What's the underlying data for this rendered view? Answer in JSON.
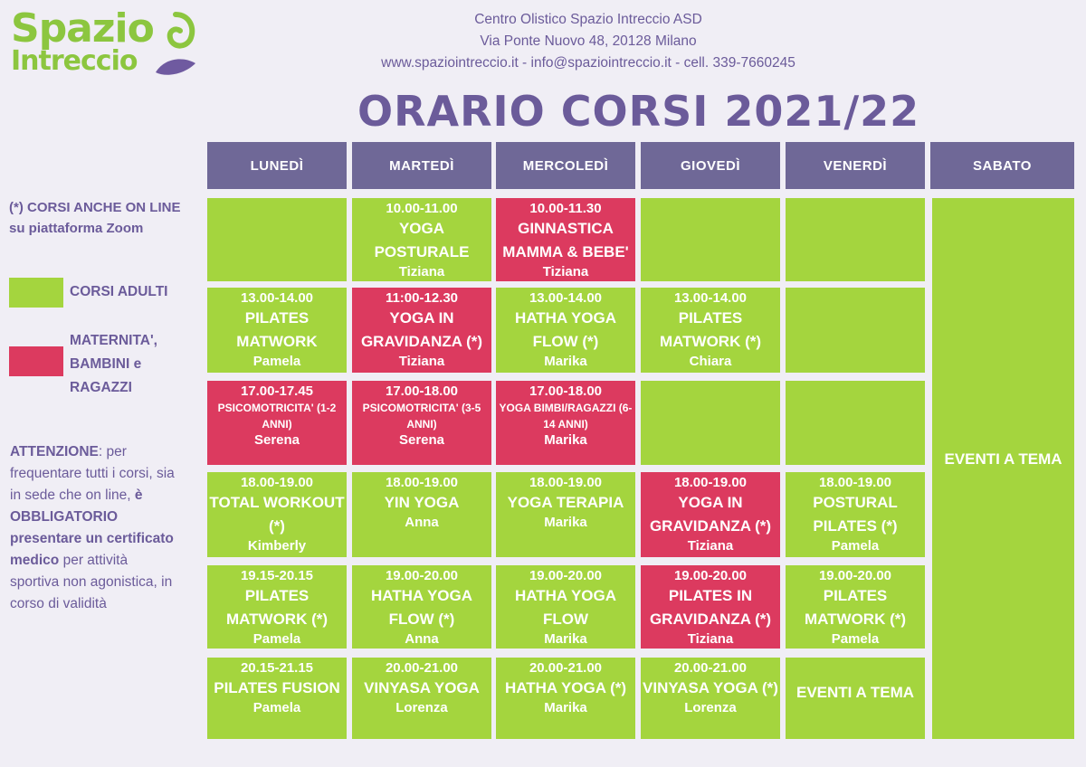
{
  "logo": {
    "line1": "Spazio",
    "line2": "Intreccio"
  },
  "header": {
    "line1": "Centro Olistico Spazio Intreccio ASD",
    "line2": "Via Ponte Nuovo 48, 20128 Milano",
    "line3": "www.spaziointreccio.it - info@spaziointreccio.it - cell. 339-7660245"
  },
  "title": "ORARIO CORSI 2021/22",
  "days": [
    "LUNEDÌ",
    "MARTEDÌ",
    "MERCOLEDÌ",
    "GIOVEDÌ",
    "VENERDÌ",
    "SABATO"
  ],
  "legend": {
    "note": "(*) CORSI ANCHE ON LINE su piattaforma Zoom",
    "adults": "CORSI ADULTI",
    "maternity": "MATERNITA', BAMBINI e RAGAZZI",
    "colors": {
      "adults": "#a4d53e",
      "maternity": "#dc3a5f",
      "header": "#6f6897",
      "text": "#6b5b9a"
    }
  },
  "attention": {
    "label": "ATTENZIONE",
    "text1": ": per frequentare tutti i corsi, sia in sede che on line, ",
    "bold1": "è OBBLIGATORIO presentare un certificato medico",
    "text2": " per attività sportiva non agonistica, in corso di validità"
  },
  "saturday": "EVENTI A TEMA",
  "schedule": [
    [
      {
        "color": "green",
        "time": "",
        "name": "",
        "person": ""
      },
      {
        "color": "green",
        "time": "10.00-11.00",
        "name": "YOGA POSTURALE",
        "person": "Tiziana"
      },
      {
        "color": "pink",
        "time": "10.00-11.30",
        "name": "GINNASTICA MAMMA & BEBE'",
        "person": "Tiziana"
      },
      {
        "color": "green",
        "time": "",
        "name": "",
        "person": ""
      },
      {
        "color": "green",
        "time": "",
        "name": "",
        "person": ""
      }
    ],
    [
      {
        "color": "green",
        "time": "13.00-14.00",
        "name": "PILATES MATWORK",
        "person": "Pamela"
      },
      {
        "color": "pink",
        "time": "11:00-12.30",
        "name": "YOGA IN GRAVIDANZA (*)",
        "person": "Tiziana"
      },
      {
        "color": "green",
        "time": "13.00-14.00",
        "name": "HATHA YOGA FLOW (*)",
        "person": "Marika"
      },
      {
        "color": "green",
        "time": "13.00-14.00",
        "name": "PILATES MATWORK (*)",
        "person": "Chiara"
      },
      {
        "color": "green",
        "time": "",
        "name": "",
        "person": ""
      }
    ],
    [
      {
        "color": "pink",
        "time": "17.00-17.45",
        "sub": "PSICOMOTRICITA' (1-2 ANNI)",
        "person": "Serena"
      },
      {
        "color": "pink",
        "time": "17.00-18.00",
        "sub": "PSICOMOTRICITA' (3-5 ANNI)",
        "person": "Serena"
      },
      {
        "color": "pink",
        "time": "17.00-18.00",
        "sub": "YOGA BIMBI/RAGAZZI (6-14 ANNI)",
        "person": "Marika"
      },
      {
        "color": "green",
        "time": "",
        "name": "",
        "person": ""
      },
      {
        "color": "green",
        "time": "",
        "name": "",
        "person": ""
      }
    ],
    [
      {
        "color": "green",
        "time": "18.00-19.00",
        "name": "TOTAL WORKOUT (*)",
        "person": "Kimberly"
      },
      {
        "color": "green",
        "time": "18.00-19.00",
        "name": "YIN YOGA",
        "person": "Anna"
      },
      {
        "color": "green",
        "time": "18.00-19.00",
        "name": "YOGA TERAPIA",
        "person": "Marika"
      },
      {
        "color": "pink",
        "time": "18.00-19.00",
        "name": "YOGA IN GRAVIDANZA (*)",
        "person": "Tiziana"
      },
      {
        "color": "green",
        "time": "18.00-19.00",
        "name": "POSTURAL PILATES (*)",
        "person": "Pamela"
      }
    ],
    [
      {
        "color": "green",
        "time": "19.15-20.15",
        "name": "PILATES MATWORK (*)",
        "person": "Pamela"
      },
      {
        "color": "green",
        "time": "19.00-20.00",
        "name": "HATHA YOGA FLOW (*)",
        "person": "Anna"
      },
      {
        "color": "green",
        "time": "19.00-20.00",
        "name": "HATHA YOGA FLOW",
        "person": "Marika"
      },
      {
        "color": "pink",
        "time": "19.00-20.00",
        "name": "PILATES IN GRAVIDANZA (*)",
        "person": "Tiziana"
      },
      {
        "color": "green",
        "time": "19.00-20.00",
        "name": "PILATES MATWORK (*)",
        "person": "Pamela"
      }
    ],
    [
      {
        "color": "green",
        "time": "20.15-21.15",
        "name": "PILATES FUSION",
        "person": "Pamela"
      },
      {
        "color": "green",
        "time": "20.00-21.00",
        "name": "VINYASA YOGA",
        "person": "Lorenza"
      },
      {
        "color": "green",
        "time": "20.00-21.00",
        "name": "HATHA YOGA (*)",
        "person": "Marika"
      },
      {
        "color": "green",
        "time": "20.00-21.00",
        "name": "VINYASA YOGA (*)",
        "person": "Lorenza"
      },
      {
        "color": "green",
        "time": "",
        "name": "EVENTI A TEMA",
        "person": ""
      }
    ]
  ]
}
